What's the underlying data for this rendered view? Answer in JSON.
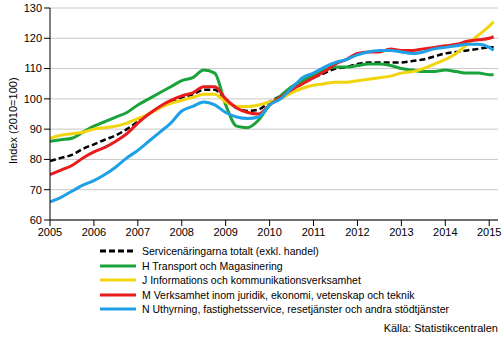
{
  "chart_data": {
    "type": "line",
    "y_label": "Index (2010=100)",
    "source": "Källa: Statistikcentralen",
    "x": [
      2005,
      2005.25,
      2005.5,
      2005.75,
      2006,
      2006.25,
      2006.5,
      2006.75,
      2007,
      2007.25,
      2007.5,
      2007.75,
      2008,
      2008.25,
      2008.5,
      2008.75,
      2009,
      2009.25,
      2009.5,
      2009.75,
      2010,
      2010.25,
      2010.5,
      2010.75,
      2011,
      2011.25,
      2011.5,
      2011.75,
      2012,
      2012.25,
      2012.5,
      2012.75,
      2013,
      2013.25,
      2013.5,
      2013.75,
      2014,
      2014.25,
      2014.5,
      2014.75,
      2015,
      2015.1
    ],
    "xlim": [
      2005,
      2015.2
    ],
    "xticks": [
      2005,
      2006,
      2007,
      2008,
      2009,
      2010,
      2011,
      2012,
      2013,
      2014,
      2015
    ],
    "ylim": [
      60,
      130
    ],
    "yticks": [
      60,
      70,
      80,
      90,
      100,
      110,
      120,
      130
    ],
    "grid": true,
    "legend": "bottom",
    "series": [
      {
        "name": "Servicenäringarna totalt  (exkl. handel)",
        "color": "#000000",
        "line_style": "dashed",
        "values": [
          79.5,
          80.5,
          81.5,
          83.5,
          85,
          86.5,
          88,
          90,
          92.5,
          95,
          97,
          99,
          100.5,
          101.5,
          103,
          103,
          99.5,
          97,
          96,
          96.5,
          99,
          101,
          103,
          105,
          107,
          108.5,
          110,
          110.5,
          111.5,
          112,
          112,
          112,
          112,
          112.5,
          113,
          114,
          115,
          115.5,
          116,
          116.5,
          117,
          117
        ]
      },
      {
        "name": "H Transport och Magasinering",
        "color": "#1aa33a",
        "line_style": "solid",
        "values": [
          86,
          86.5,
          87,
          89,
          91,
          92.5,
          94,
          95.5,
          98,
          100,
          102,
          104,
          106,
          107,
          109.5,
          108.5,
          98,
          91,
          90.5,
          93,
          98,
          101,
          104,
          106,
          108,
          109.5,
          110.5,
          110.5,
          111,
          111.5,
          111.5,
          111,
          110,
          109.5,
          109,
          109,
          109.5,
          109,
          108.5,
          108.5,
          108,
          108
        ]
      },
      {
        "name": "J Informations och kommunikationsverksamhet",
        "color": "#f2d40c",
        "line_style": "solid",
        "values": [
          87,
          88,
          88.5,
          89,
          90,
          90.5,
          91,
          92,
          93.5,
          95,
          97,
          98.5,
          99.5,
          100.5,
          101.5,
          101.5,
          99,
          97.5,
          97.5,
          98,
          99,
          100,
          102,
          103.5,
          104.5,
          105,
          105.5,
          105.5,
          106,
          106.5,
          107,
          107.5,
          108.5,
          109,
          110,
          111.5,
          113,
          115,
          118,
          121,
          124,
          125.5
        ]
      },
      {
        "name": "M Verksamhet inom juridik, ekonomi, vetenskap och teknik",
        "color": "#e81c1c",
        "line_style": "solid",
        "values": [
          75,
          76.5,
          78,
          80.5,
          82.5,
          84,
          86,
          88.5,
          92,
          95,
          97.5,
          99.5,
          101,
          102,
          104,
          104,
          100,
          97,
          95.5,
          95,
          98,
          100.5,
          103,
          105,
          107,
          109,
          111.5,
          113,
          115,
          115.5,
          115.5,
          116.5,
          116,
          116,
          116.5,
          117,
          117.5,
          118,
          119,
          119.5,
          120,
          120.5
        ]
      },
      {
        "name": "N Uthyrning, fastighetsservice, resetjänster och andra stödtjänster",
        "color": "#1ea0e6",
        "line_style": "solid",
        "values": [
          66,
          67.5,
          69.5,
          71.5,
          73,
          75,
          77.5,
          80.5,
          83,
          86,
          89,
          92,
          96,
          97.5,
          99,
          98,
          95.5,
          94,
          93.5,
          94,
          98,
          100,
          103.5,
          107,
          108.5,
          110.5,
          112,
          113,
          114.5,
          115.5,
          116,
          116,
          115.5,
          115,
          115.5,
          116.5,
          117,
          117.5,
          118,
          118,
          117,
          116
        ]
      }
    ]
  }
}
